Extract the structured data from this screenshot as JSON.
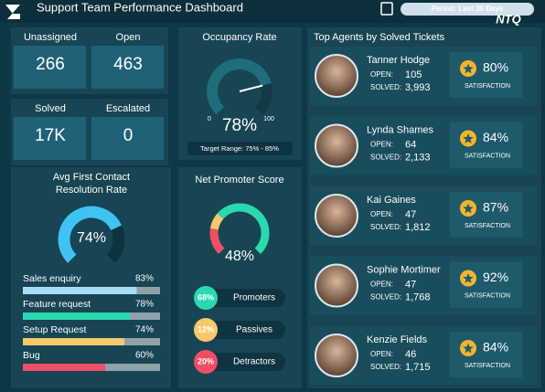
{
  "header": {
    "title": "Support Team Performance Dashboard",
    "period": "Period: Last 30 Days",
    "brand": "NTQ"
  },
  "kpis": [
    {
      "label": "Unassigned",
      "value": "266"
    },
    {
      "label": "Open",
      "value": "463"
    },
    {
      "label": "Solved",
      "value": "17K"
    },
    {
      "label": "Escalated",
      "value": "0"
    }
  ],
  "occupancy": {
    "title": "Occupancy Rate",
    "value": 78,
    "value_label": "78%",
    "min": 0,
    "max": 100,
    "target": "Target Range: 75% - 85%"
  },
  "resolution": {
    "title": [
      "Avg First Contact",
      "Resolution Rate"
    ],
    "value": 74,
    "value_label": "74%",
    "categories": [
      "Sales enquiry",
      "Feature request",
      "Setup Request",
      "Bug"
    ],
    "values": [
      83,
      78,
      74,
      60
    ],
    "value_labels": [
      "83%",
      "78%",
      "74%",
      "60%"
    ],
    "colors": [
      "#a9dcf5",
      "#2ad9b0",
      "#f6c86a",
      "#ef4f64"
    ]
  },
  "nps": {
    "title": "Net Promoter Score",
    "value_label": "48%",
    "segments": [
      {
        "label": "Promoters",
        "value": 68,
        "value_label": "68%",
        "color": "#2ad9b0"
      },
      {
        "label": "Passives",
        "value": 12,
        "value_label": "12%",
        "color": "#f6c86a"
      },
      {
        "label": "Detractors",
        "value": 20,
        "value_label": "20%",
        "color": "#ef4f64"
      }
    ]
  },
  "agents": {
    "title": "Top Agents by Solved Tickets",
    "open_label": "OPEN:",
    "solved_label": "SOLVED:",
    "satisfaction_label": "SATISFACTION",
    "rows": [
      {
        "name": "Tanner Hodge",
        "open": 105,
        "solved": "3,993",
        "satisfaction": "80%"
      },
      {
        "name": "Lynda Shames",
        "open": 64,
        "solved": "2,133",
        "satisfaction": "84%"
      },
      {
        "name": "Kai Gaines",
        "open": 47,
        "solved": "1,812",
        "satisfaction": "87%"
      },
      {
        "name": "Sophie Mortimer",
        "open": 47,
        "solved": "1,768",
        "satisfaction": "92%"
      },
      {
        "name": "Kenzie Fields",
        "open": 46,
        "solved": "1,715",
        "satisfaction": "84%"
      }
    ]
  }
}
